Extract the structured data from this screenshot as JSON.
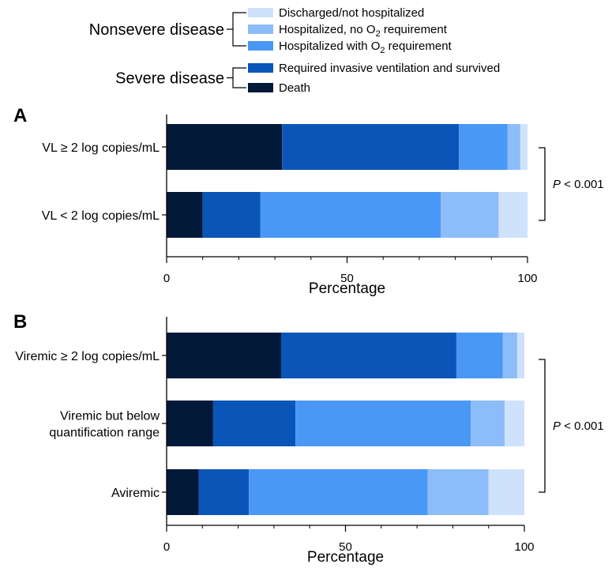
{
  "legend": {
    "groups": [
      {
        "label": "Nonsevere disease",
        "members": [
          0,
          1,
          2
        ]
      },
      {
        "label": "Severe disease",
        "members": [
          3,
          4
        ]
      }
    ],
    "entries": [
      {
        "pre": "Discharged/not hospitalized",
        "sub": "",
        "post": "",
        "color": "#cfe2fb"
      },
      {
        "pre": "Hospitalized, no O",
        "sub": "2",
        "post": " requirement",
        "color": "#8dbdf8"
      },
      {
        "pre": "Hospitalized with O",
        "sub": "2",
        "post": " requirement",
        "color": "#4a98f5"
      },
      {
        "pre": "Required invasive ventilation and survived",
        "sub": "",
        "post": "",
        "color": "#0a56b8"
      },
      {
        "pre": "Death",
        "sub": "",
        "post": "",
        "color": "#03193a"
      }
    ]
  },
  "chart_data": [
    {
      "panel": "A",
      "type": "bar",
      "orientation": "horizontal",
      "stacked": true,
      "categories": [
        "VL ≥ 2 log copies/mL",
        "VL < 2 log copies/mL"
      ],
      "series": [
        {
          "name": "Death",
          "color": "#03193a",
          "values": [
            32,
            10
          ]
        },
        {
          "name": "Required invasive ventilation and survived",
          "color": "#0a56b8",
          "values": [
            49,
            16
          ]
        },
        {
          "name": "Hospitalized with O2 requirement",
          "color": "#4a98f5",
          "values": [
            13.5,
            50
          ]
        },
        {
          "name": "Hospitalized, no O2 requirement",
          "color": "#8dbdf8",
          "values": [
            3.5,
            16
          ]
        },
        {
          "name": "Discharged/not hospitalized",
          "color": "#cfe2fb",
          "values": [
            2,
            8
          ]
        }
      ],
      "xlabel": "Percentage",
      "xlim": [
        0,
        100
      ],
      "xticks": [
        "0",
        "50",
        "100"
      ],
      "annotation": {
        "p_italic": "P",
        "p_rest": " < 0.001"
      }
    },
    {
      "panel": "B",
      "type": "bar",
      "orientation": "horizontal",
      "stacked": true,
      "categories": [
        [
          "Viremic ≥ 2 log copies/mL"
        ],
        [
          "Viremic but below",
          "quantification range"
        ],
        [
          "Aviremic"
        ]
      ],
      "series": [
        {
          "name": "Death",
          "color": "#03193a",
          "values": [
            32,
            13,
            9
          ]
        },
        {
          "name": "Required invasive ventilation and survived",
          "color": "#0a56b8",
          "values": [
            49,
            23,
            14
          ]
        },
        {
          "name": "Hospitalized with O2 requirement",
          "color": "#4a98f5",
          "values": [
            13,
            49,
            50
          ]
        },
        {
          "name": "Hospitalized, no O2 requirement",
          "color": "#8dbdf8",
          "values": [
            4,
            9.5,
            17
          ]
        },
        {
          "name": "Discharged/not hospitalized",
          "color": "#cfe2fb",
          "values": [
            2,
            5.5,
            10
          ]
        }
      ],
      "xlabel": "Percentage",
      "xlim": [
        0,
        100
      ],
      "xticks": [
        "0",
        "50",
        "100"
      ],
      "annotation": {
        "p_italic": "P",
        "p_rest": " < 0.001"
      }
    }
  ]
}
